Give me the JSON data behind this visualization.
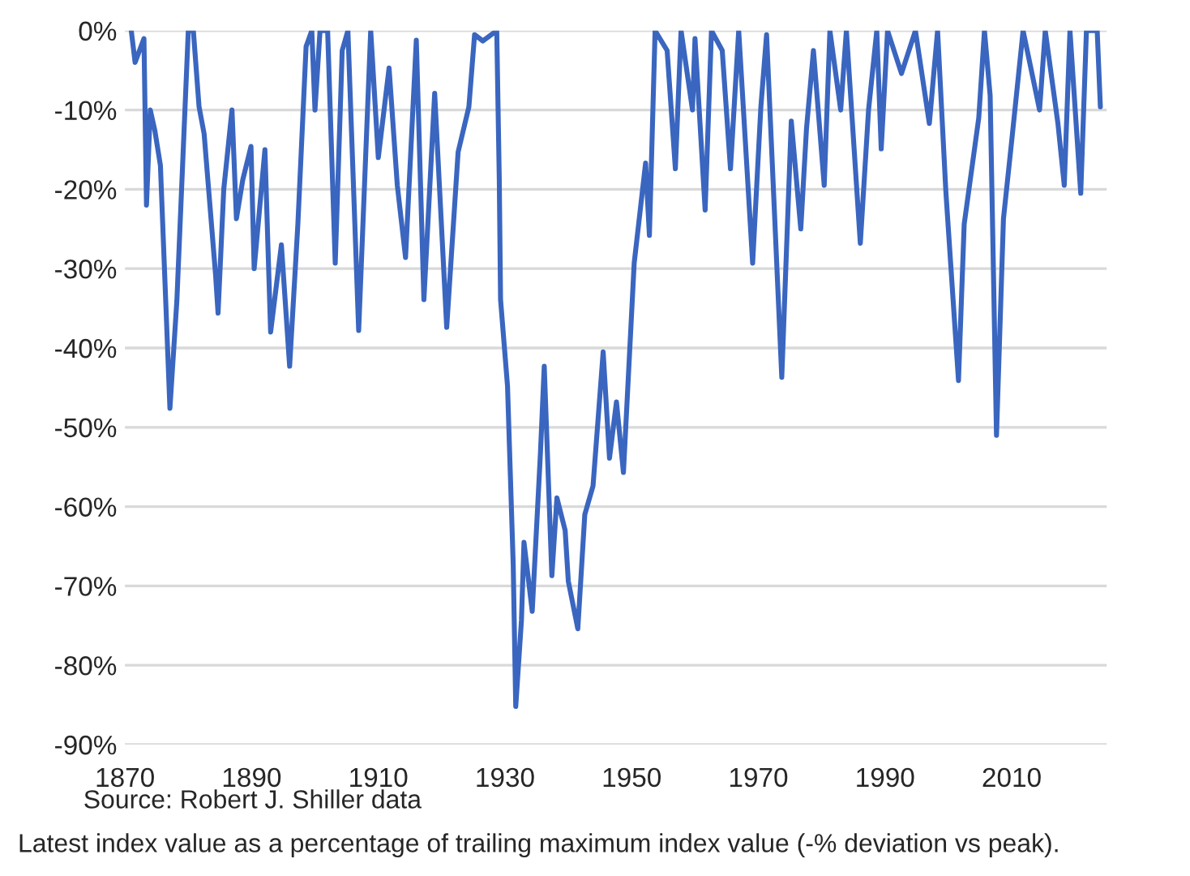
{
  "chart_data": {
    "type": "line",
    "grid": "y",
    "xlim": [
      1870,
      2025
    ],
    "xticks": [
      1870,
      1890,
      1910,
      1930,
      1950,
      1970,
      1990,
      2010
    ],
    "ylim": [
      -90,
      0
    ],
    "yticks": [
      {
        "value": 0,
        "label": "0%"
      },
      {
        "value": -10,
        "label": "-10%"
      },
      {
        "value": -20,
        "label": "-20%"
      },
      {
        "value": -30,
        "label": "-30%"
      },
      {
        "value": -40,
        "label": "-40%"
      },
      {
        "value": -50,
        "label": "-50%"
      },
      {
        "value": -60,
        "label": "-60%"
      },
      {
        "value": -70,
        "label": "-70%"
      },
      {
        "value": -80,
        "label": "-80%"
      },
      {
        "value": -90,
        "label": "-90%"
      }
    ],
    "annotations": [
      "Source: Robert J. Shiller data",
      "Latest index value as a percentage of trailing maximum index value (-% deviation vs peak)."
    ],
    "series": [
      {
        "color": "#3a66c0",
        "x": [
          1871,
          1871.6,
          1873,
          1873.4,
          1874,
          1874.7,
          1875.6,
          1877.1,
          1878.2,
          1880,
          1880.8,
          1881.7,
          1882.5,
          1884.3,
          1884.7,
          1885.6,
          1886.9,
          1887.6,
          1888.6,
          1889.9,
          1890.4,
          1892.1,
          1893,
          1894.7,
          1896,
          1897.3,
          1898.6,
          1899.5,
          1900,
          1900.8,
          1902,
          1903.2,
          1904.3,
          1905.2,
          1906.9,
          1908.8,
          1910,
          1911.7,
          1913,
          1914.3,
          1916,
          1917.2,
          1918.9,
          1920.8,
          1922.6,
          1924.3,
          1925.2,
          1926.5,
          1928.7,
          1929.1,
          1929.3,
          1930.4,
          1931.3,
          1931.7,
          1932.6,
          1933,
          1934.3,
          1935.6,
          1936.2,
          1937.4,
          1938.2,
          1939.5,
          1940,
          1941.5,
          1942.6,
          1943.9,
          1945.5,
          1946.5,
          1947.6,
          1948.7,
          1950.4,
          1952.2,
          1952.8,
          1953.7,
          1955.6,
          1956.9,
          1957.8,
          1959.6,
          1960,
          1961.6,
          1962.6,
          1964.3,
          1965.6,
          1966.9,
          1969.1,
          1970.4,
          1971.3,
          1973.7,
          1975.2,
          1976.7,
          1977.6,
          1978.7,
          1980.4,
          1981.3,
          1983,
          1983.9,
          1986.1,
          1987.4,
          1988.7,
          1989.4,
          1990.4,
          1992.6,
          1994.8,
          1997,
          1998.3,
          1999.6,
          2001.6,
          2002.5,
          2004.8,
          2005.7,
          2006.6,
          2007.6,
          2008.7,
          2010,
          2011.8,
          2014.4,
          2015.3,
          2017.3,
          2018.3,
          2019.2,
          2020.9,
          2021.8,
          2023.5,
          2024
        ],
        "values": [
          0,
          -4,
          -1,
          -22,
          -10,
          -12.5,
          -17,
          -47.6,
          -34,
          0,
          0,
          -9.6,
          -13,
          -30.7,
          -35.6,
          -20,
          -10,
          -23.7,
          -18.8,
          -14.6,
          -30,
          -15,
          -38,
          -27,
          -42.3,
          -24.4,
          -2,
          0,
          -10,
          0,
          0,
          -29.3,
          -2.5,
          0,
          -37.8,
          0,
          -16,
          -4.7,
          -19.5,
          -28.6,
          -1.2,
          -33.9,
          -7.9,
          -37.4,
          -15.3,
          -9.6,
          -0.5,
          -1.3,
          0,
          -18.8,
          -33.9,
          -44.8,
          -67.3,
          -85.2,
          -74.3,
          -64.5,
          -73.2,
          -53.2,
          -42.3,
          -68.7,
          -58.9,
          -63,
          -69.4,
          -75.4,
          -61,
          -57.4,
          -40.5,
          -53.9,
          -46.8,
          -55.7,
          -29.3,
          -16.7,
          -25.8,
          0,
          -2.5,
          -17.4,
          0,
          -10,
          -1,
          -22.6,
          0,
          -2.5,
          -17.4,
          0,
          -29.3,
          -9.6,
          -0.5,
          -43.7,
          -11.4,
          -25,
          -12.4,
          -2.5,
          -19.5,
          0,
          -10,
          0,
          -26.8,
          -10,
          0,
          -14.9,
          0,
          -5.4,
          0,
          -11.7,
          0,
          -20.2,
          -44.1,
          -24.4,
          -11,
          0,
          -8.2,
          -51,
          -23.7,
          -13.9,
          0,
          -10,
          0,
          -11.7,
          -19.5,
          0,
          -20.5,
          0,
          0,
          -9.6
        ]
      }
    ]
  }
}
